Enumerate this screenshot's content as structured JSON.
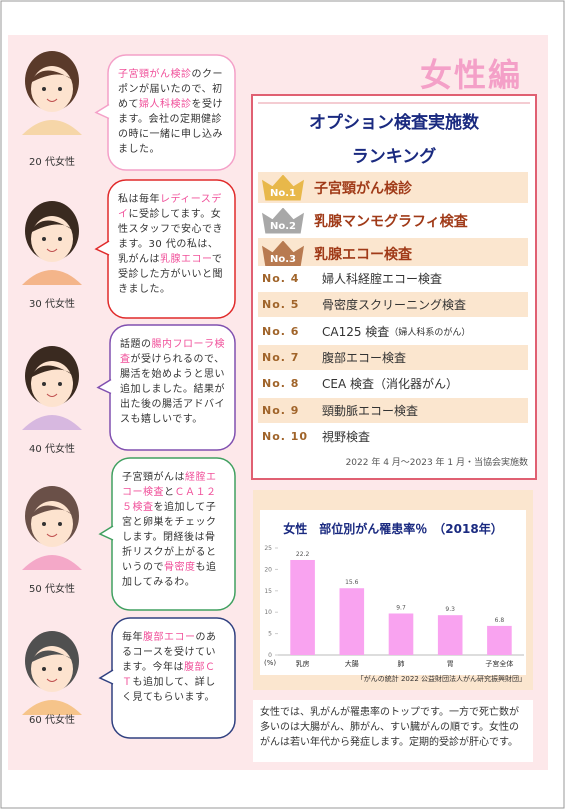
{
  "header": {
    "title": "女性編"
  },
  "testimonials": [
    {
      "segments": [
        {
          "text": "子宮頸がん検診",
          "highlight": true
        },
        {
          "text": "のクーポンが届いたので、初めて",
          "highlight": false
        },
        {
          "text": "婦人科検診",
          "highlight": true
        },
        {
          "text": "を受けます。会社の定期健診の時に一緒に申し込みました。",
          "highlight": false
        }
      ],
      "label": "20 代女性"
    },
    {
      "segments": [
        {
          "text": "私は毎年",
          "highlight": false
        },
        {
          "text": "レディースデイ",
          "highlight": true
        },
        {
          "text": "に受診してます。女性スタッフで安心できます。30 代の私は、乳がんは",
          "highlight": false
        },
        {
          "text": "乳腺エコー",
          "highlight": true
        },
        {
          "text": "で受診した方がいいと聞きました。",
          "highlight": false
        }
      ],
      "label": "30 代女性"
    },
    {
      "segments": [
        {
          "text": "話題の",
          "highlight": false
        },
        {
          "text": "腸内フローラ検査",
          "highlight": true
        },
        {
          "text": "が受けられるので、腸活を始めようと思い追加しました。結果が出た後の腸活アドバイスも嬉しいです。",
          "highlight": false
        }
      ],
      "label": "40 代女性"
    },
    {
      "segments": [
        {
          "text": "子宮頸がんは",
          "highlight": false
        },
        {
          "text": "経腟エコー検査",
          "highlight": true
        },
        {
          "text": "と",
          "highlight": false
        },
        {
          "text": "ＣＡ１２５検査",
          "highlight": true
        },
        {
          "text": "を追加して子宮と卵巣をチェックします。閉経後は骨折リスクが上がるというので",
          "highlight": false
        },
        {
          "text": "骨密度",
          "highlight": true
        },
        {
          "text": "も追加してみるわ。",
          "highlight": false
        }
      ],
      "label": "50 代女性"
    },
    {
      "segments": [
        {
          "text": "毎年",
          "highlight": false
        },
        {
          "text": "腹部エコー",
          "highlight": true
        },
        {
          "text": "のあるコースを受けています。今年は",
          "highlight": false
        },
        {
          "text": "腹部ＣＴ",
          "highlight": true
        },
        {
          "text": "も追加して、詳しく見てもらいます。",
          "highlight": false
        }
      ],
      "label": "60 代女性"
    }
  ],
  "ranking": {
    "title": [
      "オプション検査実施数",
      "ランキング"
    ],
    "items": [
      {
        "rank": "No.1",
        "name": "子宮頸がん検診"
      },
      {
        "rank": "No.2",
        "name": "乳腺マンモグラフィ検査"
      },
      {
        "rank": "No.3",
        "name": "乳腺エコー検査"
      },
      {
        "rank": "No. 4",
        "name": "婦人科経腟エコー検査"
      },
      {
        "rank": "No. 5",
        "name": "骨密度スクリーニング検査"
      },
      {
        "rank": "No. 6",
        "name": "CA125 検査",
        "note": "（婦人科系のがん）"
      },
      {
        "rank": "No. 7",
        "name": "腹部エコー検査"
      },
      {
        "rank": "No. 8",
        "name": "CEA 検査（消化器がん）"
      },
      {
        "rank": "No. 9",
        "name": "頸動脈エコー検査"
      },
      {
        "rank": "No. 10",
        "name": "視野検査"
      }
    ],
    "period": "2022 年 4 月～2023 年 1 月・当協会実施数"
  },
  "chart_data": {
    "type": "bar",
    "title": "女性　部位別がん罹患率％　（2018年）",
    "categories": [
      "乳房",
      "大腸",
      "肺",
      "胃",
      "子宮全体"
    ],
    "values": [
      22.2,
      15.6,
      9.7,
      9.3,
      6.8
    ],
    "color": "#f9a3f0",
    "ylim": [
      0,
      25
    ],
    "yticks": [
      0,
      5,
      10,
      15,
      20,
      25
    ],
    "ylabel": "(%)",
    "source": "「がんの統計 2022 公益財団法人がん研究振興財団」"
  },
  "summary": "女性では、乳がんが罹患率のトップです。一方で死亡数が多いのは大腸がん、肺がん、すい臓がんの順です。女性のがんは若い年代から発症します。定期的受診が肝心です。"
}
